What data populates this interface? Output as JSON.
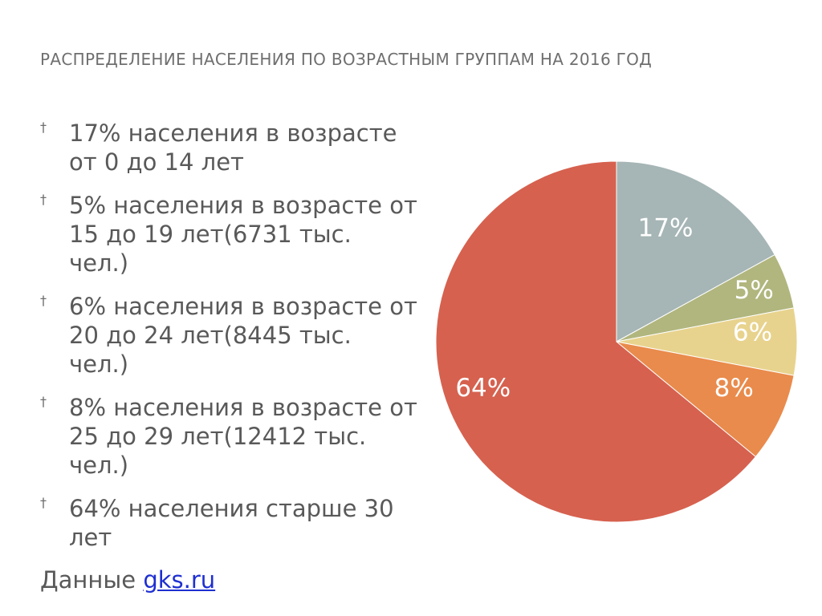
{
  "title": "РАСПРЕДЕЛЕНИЕ НАСЕЛЕНИЯ ПО ВОЗРАСТНЫМ ГРУППАМ НА 2016 ГОД",
  "bullet_icon": "hourglass-bullet-icon",
  "bullets": [
    {
      "text": "17% населения в возрасте от 0 до 14 лет"
    },
    {
      "text": "5% населения в возрасте от 15 до 19 лет(6731 тыс. чел.)"
    },
    {
      "text": "6% населения в возрасте от 20 до 24 лет(8445 тыс. чел.)"
    },
    {
      "text": "8% населения в возрасте от 25 до 29 лет(12412 тыс. чел.)"
    },
    {
      "text": "64% населения старше 30 лет"
    }
  ],
  "source": {
    "prefix": "Данные ",
    "link": "gks.ru"
  },
  "colors": {
    "link": "#1f2fd1"
  },
  "chart_data": {
    "type": "pie",
    "title": "",
    "start_angle": "12 o'clock, clockwise",
    "slices": [
      {
        "label": "17%",
        "value": 17,
        "color": "#a6b5b5"
      },
      {
        "label": "5%",
        "value": 5,
        "color": "#b1b67e"
      },
      {
        "label": "6%",
        "value": 6,
        "color": "#e8d38e"
      },
      {
        "label": "8%",
        "value": 8,
        "color": "#e98b4c"
      },
      {
        "label": "64%",
        "value": 64,
        "color": "#d6614f"
      }
    ]
  }
}
